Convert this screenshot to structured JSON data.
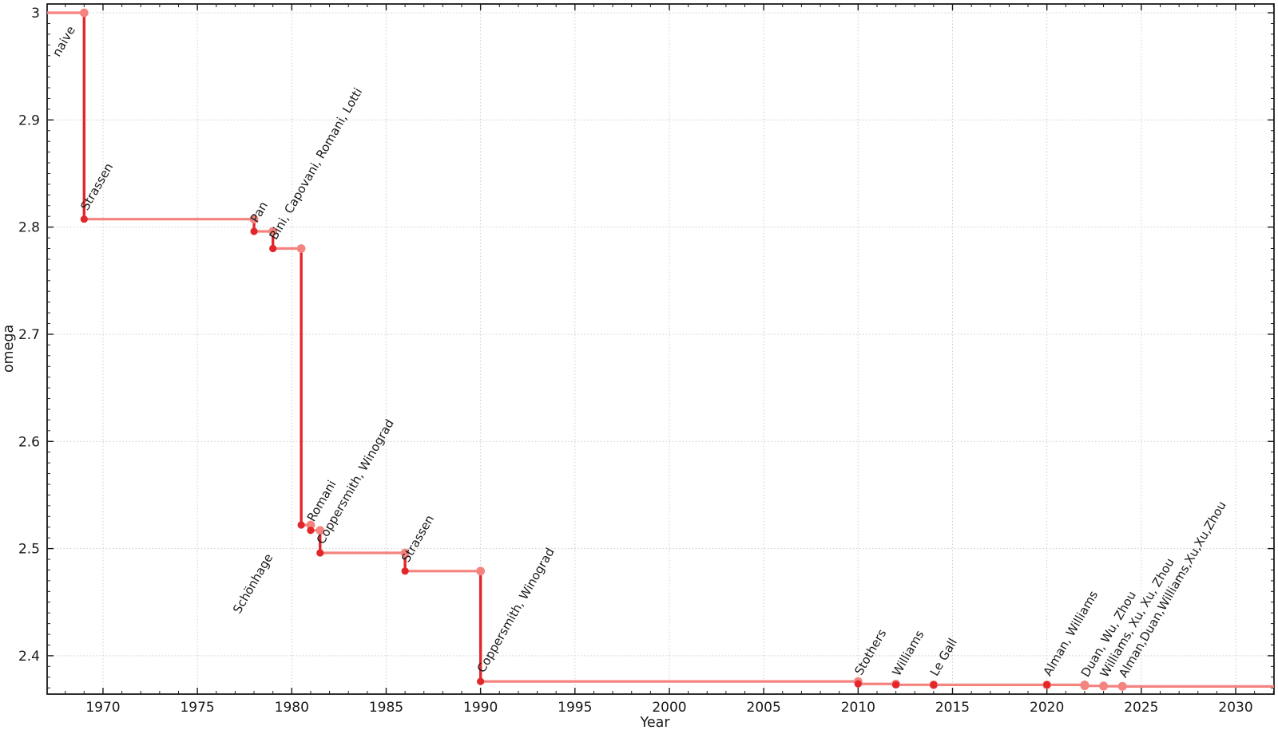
{
  "figure": {
    "background": "#ffffff"
  },
  "chart_data": {
    "type": "line",
    "step_style": "post",
    "title": "",
    "xlabel": "Year",
    "ylabel": "omega",
    "xlim": [
      1967.04,
      2032.03
    ],
    "ylim": [
      2.3642,
      3.0082
    ],
    "x_major_ticks": [
      1970,
      1975,
      1980,
      1985,
      1990,
      1995,
      2000,
      2005,
      2010,
      2015,
      2020,
      2025,
      2030
    ],
    "x_major_tick_labels": [
      "1970",
      "1975",
      "1980",
      "1985",
      "1990",
      "1995",
      "2000",
      "2005",
      "2010",
      "2015",
      "2020",
      "2025",
      "2030"
    ],
    "y_major_ticks": [
      3,
      2.9,
      2.8,
      2.7,
      2.6,
      2.5,
      2.4
    ],
    "y_major_tick_labels": [
      "3",
      "2.9",
      "2.8",
      "2.7",
      "2.6",
      "2.5",
      "2.4"
    ],
    "x_minor_tick_step": 1,
    "y_minor_tick_step": 0.01,
    "grid": {
      "show": true,
      "style": "dotted",
      "at": "major-ticks"
    },
    "legend": {
      "show": false
    },
    "colors": {
      "step_horizontal": "#f5837f",
      "step_vertical": "#e2262a",
      "marker_new_result": "#e2262a",
      "marker_previous_value": "#f5837f",
      "label_confirmed": "#141414",
      "label_recent": "#949494",
      "grid": "#cccccc",
      "axis": "#1a1a1a"
    },
    "start_point": {
      "omega": 3,
      "label": "naive",
      "label_dx": 15,
      "label_dy": 56
    },
    "line_extends_to_right_edge": true,
    "points": [
      {
        "year": 1969,
        "omega": 2.8074,
        "label": "Strassen"
      },
      {
        "year": 1978,
        "omega": 2.796,
        "label": "Pan"
      },
      {
        "year": 1979,
        "omega": 2.78,
        "label": "Bini, Capovani, Romani, Lotti"
      },
      {
        "year": 1980.5,
        "omega": 2.522,
        "label": "Schönhage",
        "label_dx": -77,
        "label_dy": 112
      },
      {
        "year": 1981,
        "omega": 2.517,
        "label": "Romani"
      },
      {
        "year": 1981.5,
        "omega": 2.496,
        "label": "Coppersmith, Winograd"
      },
      {
        "year": 1986,
        "omega": 2.479,
        "label": "Strassen"
      },
      {
        "year": 1990,
        "omega": 2.376,
        "label": "Coppersmith, Winograd"
      },
      {
        "year": 2010,
        "omega": 2.3737,
        "label": "Stothers"
      },
      {
        "year": 2012,
        "omega": 2.3729,
        "label": "Williams"
      },
      {
        "year": 2014,
        "omega": 2.3728639,
        "label": "Le Gall"
      },
      {
        "year": 2020,
        "omega": 2.3728596,
        "label": "Alman, Williams"
      },
      {
        "year": 2022,
        "omega": 2.37188,
        "label": "Duan, Wu, Zhou",
        "recent": true
      },
      {
        "year": 2023,
        "omega": 2.371552,
        "label": "Williams, Xu, Xu, Zhou",
        "recent": true
      },
      {
        "year": 2024,
        "omega": 2.371339,
        "label": "Alman,Duan,Williams,Xu,Xu,Zhou",
        "recent": true
      }
    ]
  }
}
